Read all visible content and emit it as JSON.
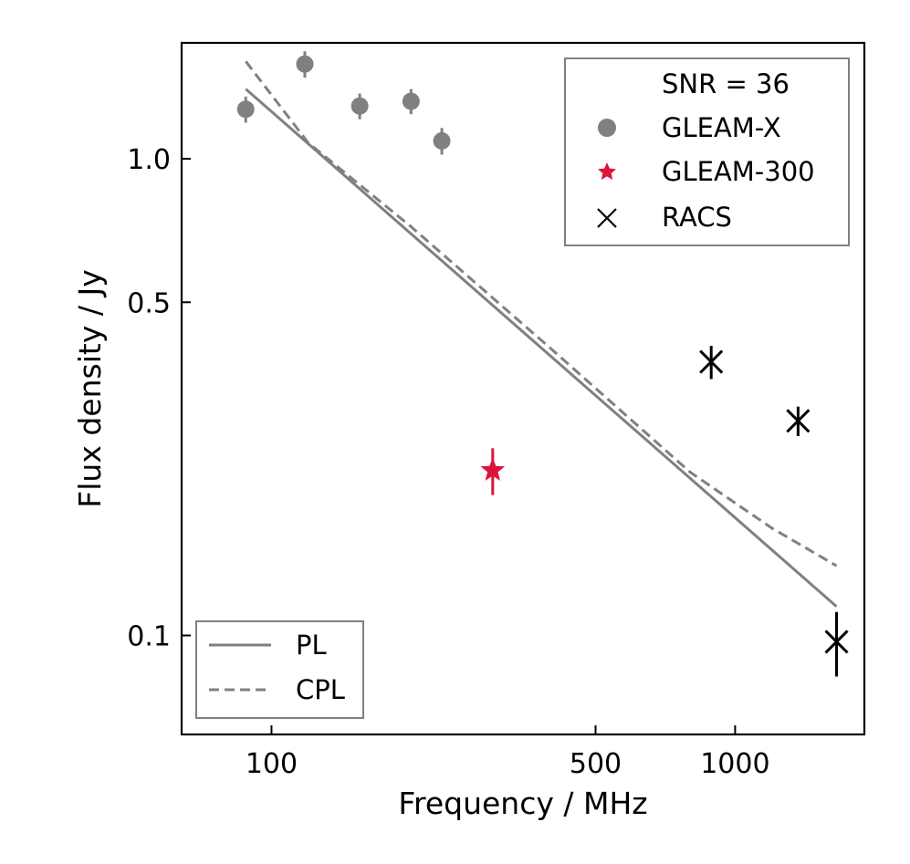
{
  "chart_data": {
    "type": "scatter",
    "xscale": "log",
    "yscale": "log",
    "xlabel": "Frequency / MHz",
    "ylabel": "Flux density / Jy",
    "xlim": [
      64,
      1900
    ],
    "ylim": [
      0.062,
      1.75
    ],
    "xticks": [
      {
        "value": 100,
        "label": "100"
      },
      {
        "value": 500,
        "label": "500"
      },
      {
        "value": 1000,
        "label": "1000"
      }
    ],
    "yticks": [
      {
        "value": 0.1,
        "label": "0.1"
      },
      {
        "value": 0.5,
        "label": "0.5"
      },
      {
        "value": 1.0,
        "label": "1.0"
      }
    ],
    "series": [
      {
        "name": "GLEAM-X",
        "marker": "circle",
        "color": "#808080",
        "points": [
          {
            "x": 88,
            "y": 1.27,
            "err": 0.08
          },
          {
            "x": 118,
            "y": 1.58,
            "err": 0.1
          },
          {
            "x": 155,
            "y": 1.29,
            "err": 0.08
          },
          {
            "x": 200,
            "y": 1.32,
            "err": 0.08
          },
          {
            "x": 233,
            "y": 1.09,
            "err": 0.07
          }
        ]
      },
      {
        "name": "GLEAM-300",
        "marker": "star",
        "color": "#dc143c",
        "points": [
          {
            "x": 300,
            "y": 0.222,
            "err": 0.025
          }
        ]
      },
      {
        "name": "RACS",
        "marker": "x",
        "color": "#000000",
        "points": [
          {
            "x": 888,
            "y": 0.375,
            "err": 0.03
          },
          {
            "x": 1367,
            "y": 0.282,
            "err": 0.02
          },
          {
            "x": 1655,
            "y": 0.097,
            "err": 0.015
          }
        ]
      },
      {
        "name": "PL",
        "style": "solid",
        "color": "#808080",
        "line": [
          {
            "x": 88,
            "y": 1.4
          },
          {
            "x": 1655,
            "y": 0.115
          }
        ]
      },
      {
        "name": "CPL",
        "style": "dashed",
        "color": "#808080",
        "line": [
          {
            "x": 88,
            "y": 1.6
          },
          {
            "x": 120,
            "y": 1.08
          },
          {
            "x": 200,
            "y": 0.72
          },
          {
            "x": 400,
            "y": 0.4
          },
          {
            "x": 800,
            "y": 0.22
          },
          {
            "x": 1200,
            "y": 0.168
          },
          {
            "x": 1655,
            "y": 0.14
          }
        ]
      }
    ],
    "legend_main": {
      "title": "SNR = 36",
      "entries": [
        "GLEAM-X",
        "GLEAM-300",
        "RACS"
      ],
      "position": "top-right"
    },
    "legend_fit": {
      "entries": [
        "PL",
        "CPL"
      ],
      "position": "bottom-left"
    }
  }
}
